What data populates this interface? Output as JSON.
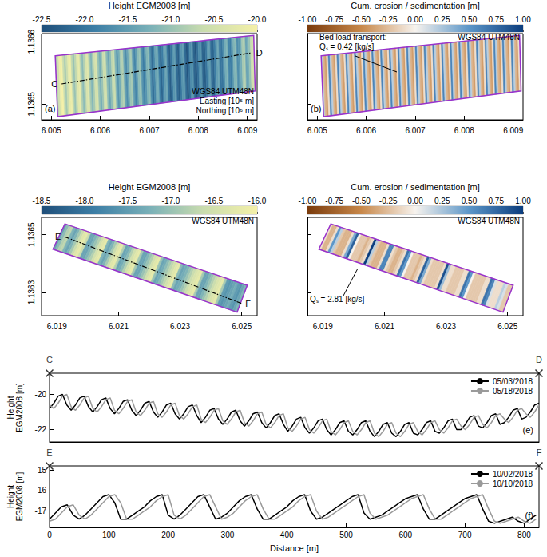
{
  "chart_data": [
    {
      "type": "elevation",
      "panel": "(a)",
      "xlim": [
        6.0048,
        6.0092
      ],
      "xticks": [
        6.005,
        6.006,
        6.007,
        6.008,
        6.009
      ],
      "ylim": [
        1.136475,
        1.136613
      ],
      "yticks": [
        1.1365,
        1.1366
      ],
      "colorbar": {
        "title": "Height EGM2008 [m]",
        "range": [
          -22.5,
          -20.0
        ],
        "ticks": [
          -22.5,
          {
            "value": -22,
            "label": "-22.0"
          },
          -21.5,
          {
            "value": -21,
            "label": "-21.0"
          },
          -20.5,
          {
            "value": -20,
            "label": "-20.0"
          }
        ],
        "colors": [
          "#1f4e79",
          "#3d7fa6",
          "#79b0b8",
          "#c9dcae",
          "#f4f0a8"
        ]
      },
      "outline": [
        [
          6.00508,
          1.1365775
        ],
        [
          6.00913,
          1.13661
        ],
        [
          6.00916,
          1.1365213
        ],
        [
          6.00513,
          1.13648
        ]
      ],
      "color": "#9932cc",
      "profile_line": {
        "labels": [
          "C",
          "D"
        ],
        "points": [
          [
            6.00521,
            1.1365325
          ],
          [
            6.0091,
            1.1365825
          ]
        ],
        "line_style": "dashdot"
      },
      "annotations": [
        "WGS84 UTM48N",
        "Easting [10⁵ m]",
        "Northing [10⁶ m]"
      ]
    },
    {
      "type": "change",
      "panel": "(b)",
      "tick_labels": "x",
      "xlim": [
        6.0048,
        6.0092
      ],
      "xticks": [
        6.005,
        6.006,
        6.007,
        6.008,
        6.009
      ],
      "ylim": [
        1.136475,
        1.136613
      ],
      "yticks": [
        1.1365,
        1.1366
      ],
      "colorbar": {
        "title": "Cum. erosion / sedimentation [m]",
        "range": [
          -1,
          1
        ],
        "ticks": [
          {
            "value": -1,
            "label": "-1.00"
          },
          -0.75,
          {
            "value": -0.5,
            "label": "-0.50"
          },
          -0.25,
          {
            "value": 0,
            "label": "0.00"
          },
          0.25,
          {
            "value": 0.5,
            "label": "0.50"
          },
          0.75,
          {
            "value": 1,
            "label": "1.00"
          }
        ],
        "colors": [
          "#7a3b0c",
          "#c8884a",
          "#f7f3ee",
          "#5c96c8",
          "#0b3d7e"
        ]
      },
      "outline": [
        [
          6.00508,
          1.1365775
        ],
        [
          6.00913,
          1.13661
        ],
        [
          6.00916,
          1.1365213
        ],
        [
          6.00513,
          1.13648
        ]
      ],
      "color": "#9932cc",
      "annotations": [
        "WGS84 UTM48N"
      ],
      "callout": [
        "Bed load transport:",
        "Qₛ = 0.42 [kg/s]"
      ]
    },
    {
      "type": "elevation",
      "xlim": [
        6.0185,
        6.0255
      ],
      "xticks": [
        6.019,
        6.021,
        6.023,
        6.025
      ],
      "ylim": [
        1.13622,
        1.13656
      ],
      "yticks": [
        1.1363,
        1.1365
      ],
      "colorbar": {
        "title": "Height EGM2008 [m]",
        "range": [
          -18.5,
          -16.0
        ],
        "ticks": [
          -18.5,
          {
            "value": -18,
            "label": "-18.0"
          },
          -17.5,
          {
            "value": -17,
            "label": "-17.0"
          },
          -16.5,
          {
            "value": -16,
            "label": "-16.0"
          }
        ],
        "colors": [
          "#1f4e79",
          "#3d7fa6",
          "#79b0b8",
          "#c9dcae",
          "#f4f0a8"
        ]
      },
      "outline": [
        [
          6.01926,
          1.1365375
        ],
        [
          6.02518,
          1.136325
        ],
        [
          6.02485,
          1.136232
        ],
        [
          6.01887,
          1.13645
        ]
      ],
      "color": "#9932cc",
      "profile_line": {
        "labels": [
          "E",
          "F"
        ],
        "points": [
          [
            6.01926,
            1.1364925
          ],
          [
            6.02499,
            1.1362625
          ]
        ],
        "line_style": "dashdot"
      },
      "annotations": [
        "WGS84 UTM48N"
      ]
    },
    {
      "type": "change",
      "tick_labels": "x",
      "xlim": [
        6.0185,
        6.0255
      ],
      "xticks": [
        6.019,
        6.021,
        6.023,
        6.025
      ],
      "ylim": [
        1.13622,
        1.13656
      ],
      "yticks": [
        1.1363,
        1.1365
      ],
      "colorbar": {
        "title": "Cum. erosion / sedimentation [m]",
        "range": [
          -1,
          1
        ],
        "ticks": [
          {
            "value": -1,
            "label": "-1.00"
          },
          -0.75,
          {
            "value": -0.5,
            "label": "-0.50"
          },
          -0.25,
          {
            "value": 0,
            "label": "0.00"
          },
          0.25,
          {
            "value": 0.5,
            "label": "0.50"
          },
          0.75,
          {
            "value": 1,
            "label": "1.00"
          }
        ],
        "colors": [
          "#7a3b0c",
          "#c8884a",
          "#f7f3ee",
          "#5c96c8",
          "#0b3d7e"
        ]
      },
      "outline": [
        [
          6.01926,
          1.1365375
        ],
        [
          6.02518,
          1.136325
        ],
        [
          6.02485,
          1.136232
        ],
        [
          6.01887,
          1.13645
        ]
      ],
      "color": "#9932cc",
      "annotations": [
        "WGS84 UTM48N"
      ],
      "callout": [
        "Qₛ = 2.81 [kg/s]"
      ]
    },
    {
      "type": "line",
      "panel": "(e)",
      "ylabel": "Height\nEGM2008 [m]",
      "endpoints": [
        "C",
        "D"
      ],
      "tick_labels": "y",
      "legend": "upper right",
      "xlim": [
        0,
        565
      ],
      "ylim": [
        -22.7,
        -18.8
      ],
      "yticks": [
        -22,
        -20
      ],
      "x": [
        0,
        5,
        10,
        15,
        20,
        25,
        30,
        35,
        40,
        45,
        50,
        55,
        60,
        65,
        70,
        75,
        80,
        85,
        90,
        95,
        100,
        105,
        110,
        115,
        120,
        125,
        130,
        135,
        140,
        145,
        150,
        155,
        160,
        165,
        170,
        175,
        180,
        185,
        190,
        195,
        200,
        205,
        210,
        215,
        220,
        225,
        230,
        235,
        240,
        245,
        250,
        255,
        260,
        265,
        270,
        275,
        280,
        285,
        290,
        295,
        300,
        305,
        310,
        315,
        320,
        325,
        330,
        335,
        340,
        345,
        350,
        355,
        360,
        365,
        370,
        375,
        380,
        385,
        390,
        395,
        400,
        405,
        410,
        415,
        420,
        425,
        430,
        435,
        440,
        445,
        450,
        455,
        460,
        465,
        470,
        475,
        480,
        485,
        490,
        495,
        500,
        505,
        510,
        515,
        520,
        525,
        530,
        535,
        540,
        545,
        550,
        555,
        560,
        565
      ],
      "series": [
        {
          "name": "05/03/2018",
          "color": "#000000",
          "values": [
            -20.8,
            -20.5,
            -20.1,
            -20.0,
            -20.6,
            -20.9,
            -20.6,
            -20.2,
            -20.1,
            -20.7,
            -21.0,
            -20.7,
            -20.3,
            -20.2,
            -20.8,
            -21.1,
            -20.8,
            -20.4,
            -20.3,
            -20.9,
            -21.2,
            -20.9,
            -20.5,
            -20.4,
            -21.0,
            -21.3,
            -21.0,
            -20.6,
            -20.5,
            -21.1,
            -21.4,
            -21.1,
            -20.7,
            -20.6,
            -21.2,
            -21.6,
            -21.3,
            -20.9,
            -20.8,
            -21.4,
            -21.7,
            -21.4,
            -21.0,
            -20.9,
            -21.5,
            -21.8,
            -21.5,
            -21.1,
            -21.0,
            -21.6,
            -21.9,
            -21.6,
            -21.2,
            -21.1,
            -21.7,
            -22.1,
            -21.8,
            -21.4,
            -21.3,
            -21.9,
            -22.2,
            -21.9,
            -21.5,
            -21.4,
            -22.0,
            -22.3,
            -22.0,
            -21.6,
            -21.5,
            -22.1,
            -22.3,
            -22.0,
            -21.6,
            -21.5,
            -22.1,
            -22.4,
            -22.1,
            -21.7,
            -21.6,
            -22.2,
            -22.4,
            -22.1,
            -21.7,
            -21.6,
            -22.2,
            -22.3,
            -22.0,
            -21.6,
            -21.5,
            -22.1,
            -22.2,
            -21.9,
            -21.5,
            -21.4,
            -22.0,
            -22.0,
            -21.7,
            -21.3,
            -21.2,
            -21.8,
            -21.9,
            -21.6,
            -21.2,
            -21.1,
            -21.7,
            -21.6,
            -21.3,
            -20.9,
            -20.8,
            -21.4,
            -21.3,
            -21.0,
            -20.6,
            -20.5
          ]
        },
        {
          "name": "05/18/2018",
          "color": "#9a9a9a",
          "values": [
            -20.6,
            -20.8,
            -20.5,
            -20.1,
            -20.0,
            -20.7,
            -20.9,
            -20.6,
            -20.2,
            -20.1,
            -20.8,
            -21.0,
            -20.7,
            -20.3,
            -20.2,
            -20.9,
            -21.1,
            -20.8,
            -20.4,
            -20.3,
            -21.0,
            -21.2,
            -20.9,
            -20.5,
            -20.4,
            -21.1,
            -21.3,
            -21.0,
            -20.6,
            -20.5,
            -21.2,
            -21.4,
            -21.1,
            -20.7,
            -20.6,
            -21.4,
            -21.6,
            -21.3,
            -20.9,
            -20.8,
            -21.5,
            -21.7,
            -21.4,
            -21.0,
            -20.9,
            -21.6,
            -21.8,
            -21.5,
            -21.1,
            -21.0,
            -21.7,
            -21.9,
            -21.6,
            -21.2,
            -21.1,
            -21.9,
            -22.1,
            -21.8,
            -21.4,
            -21.3,
            -22.0,
            -22.2,
            -21.9,
            -21.5,
            -21.4,
            -22.1,
            -22.3,
            -22.0,
            -21.6,
            -21.5,
            -22.1,
            -22.3,
            -22.0,
            -21.6,
            -21.5,
            -22.2,
            -22.4,
            -22.1,
            -21.7,
            -21.6,
            -22.2,
            -22.4,
            -22.1,
            -21.7,
            -21.6,
            -22.1,
            -22.3,
            -22.0,
            -21.6,
            -21.5,
            -22.0,
            -22.2,
            -21.9,
            -21.5,
            -21.4,
            -21.8,
            -22.0,
            -21.7,
            -21.3,
            -21.2,
            -21.7,
            -21.9,
            -21.6,
            -21.2,
            -21.1,
            -21.4,
            -21.6,
            -21.3,
            -20.9,
            -20.8,
            -21.1,
            -21.3,
            -21.0,
            -20.6
          ]
        }
      ]
    },
    {
      "type": "line",
      "panel": "(f)",
      "ylabel": "Height\nEGM2008 [m]",
      "xlabel": "Distance [m]",
      "endpoints": [
        "E",
        "F"
      ],
      "legend": "upper right",
      "xlim": [
        0,
        825
      ],
      "xticks": [
        0,
        100,
        200,
        300,
        400,
        500,
        600,
        700,
        800
      ],
      "ylim": [
        -17.8,
        -14.8
      ],
      "yticks": [
        -17,
        -16,
        -15
      ],
      "x": [
        0,
        10,
        20,
        30,
        40,
        50,
        60,
        70,
        80,
        90,
        100,
        110,
        120,
        130,
        140,
        150,
        160,
        170,
        180,
        190,
        200,
        210,
        220,
        230,
        240,
        250,
        260,
        270,
        280,
        290,
        300,
        310,
        320,
        330,
        340,
        350,
        360,
        370,
        380,
        390,
        400,
        410,
        420,
        430,
        440,
        450,
        460,
        470,
        480,
        490,
        500,
        510,
        520,
        530,
        540,
        550,
        560,
        570,
        580,
        590,
        600,
        610,
        620,
        630,
        640,
        650,
        660,
        670,
        680,
        690,
        700,
        710,
        720,
        730,
        740,
        750,
        760,
        770,
        780,
        790,
        800,
        810,
        820
      ],
      "series": [
        {
          "name": "10/02/2018",
          "color": "#000000",
          "values": [
            -17.4,
            -17.1,
            -16.8,
            -16.7,
            -17.2,
            -17.4,
            -17.2,
            -16.9,
            -16.6,
            -16.3,
            -16.2,
            -16.6,
            -17.4,
            -17.4,
            -17.2,
            -17.0,
            -16.8,
            -16.5,
            -16.3,
            -16.2,
            -17.2,
            -17.4,
            -17.2,
            -16.9,
            -16.6,
            -16.3,
            -16.2,
            -16.8,
            -17.4,
            -17.3,
            -17.1,
            -16.8,
            -16.5,
            -16.3,
            -16.2,
            -16.9,
            -17.4,
            -17.4,
            -17.2,
            -17.0,
            -16.8,
            -16.5,
            -16.3,
            -16.2,
            -17.0,
            -17.4,
            -17.3,
            -17.1,
            -16.9,
            -16.7,
            -16.5,
            -16.3,
            -16.2,
            -17.1,
            -17.4,
            -17.3,
            -17.2,
            -17.0,
            -16.8,
            -16.6,
            -16.4,
            -16.3,
            -16.2,
            -16.9,
            -17.4,
            -17.4,
            -17.2,
            -17.0,
            -16.8,
            -16.6,
            -16.4,
            -16.3,
            -16.2,
            -16.9,
            -17.5,
            -17.6,
            -17.5,
            -17.4,
            -17.3,
            -17.5,
            -17.6,
            -17.4,
            -17.2
          ]
        },
        {
          "name": "10/10/2018",
          "color": "#9a9a9a",
          "values": [
            -17.5,
            -17.4,
            -17.1,
            -16.8,
            -16.7,
            -17.2,
            -17.4,
            -17.2,
            -16.9,
            -16.6,
            -16.3,
            -16.2,
            -16.6,
            -17.4,
            -17.4,
            -17.2,
            -17.0,
            -16.8,
            -16.5,
            -16.3,
            -16.2,
            -17.2,
            -17.4,
            -17.2,
            -16.9,
            -16.6,
            -16.3,
            -16.2,
            -16.8,
            -17.4,
            -17.3,
            -17.1,
            -16.8,
            -16.5,
            -16.3,
            -16.2,
            -16.9,
            -17.4,
            -17.4,
            -17.2,
            -17.0,
            -16.8,
            -16.5,
            -16.3,
            -16.2,
            -17.0,
            -17.4,
            -17.3,
            -17.1,
            -16.9,
            -16.7,
            -16.5,
            -16.3,
            -16.2,
            -17.1,
            -17.4,
            -17.3,
            -17.2,
            -17.0,
            -16.8,
            -16.6,
            -16.4,
            -16.3,
            -16.2,
            -16.9,
            -17.4,
            -17.4,
            -17.2,
            -17.0,
            -16.8,
            -16.6,
            -16.4,
            -16.3,
            -16.2,
            -16.9,
            -17.5,
            -17.6,
            -17.5,
            -17.4,
            -17.3,
            -17.5,
            -17.6,
            -17.4
          ]
        }
      ]
    }
  ]
}
